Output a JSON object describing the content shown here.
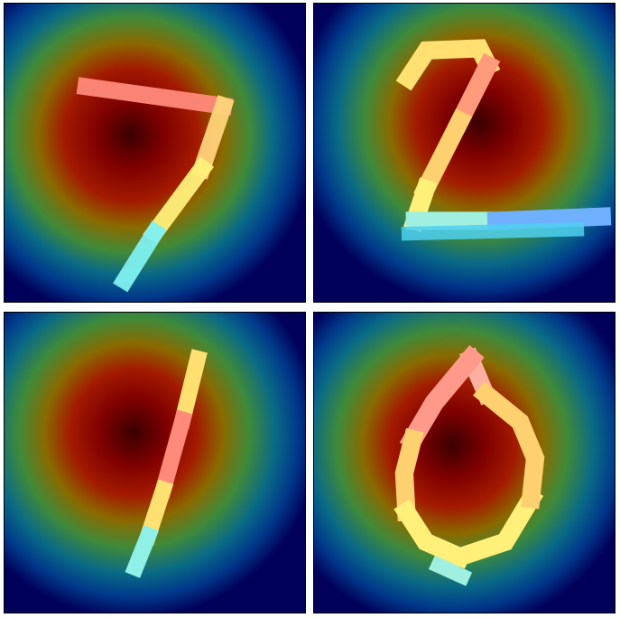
{
  "figure": {
    "panels": [
      {
        "digit_shape": "seven",
        "colormap": "jet",
        "overlay": "digit-stroke"
      },
      {
        "digit_shape": "two",
        "colormap": "jet",
        "overlay": "digit-stroke"
      },
      {
        "digit_shape": "one",
        "colormap": "jet",
        "overlay": "digit-stroke"
      },
      {
        "digit_shape": "zero",
        "colormap": "jet",
        "overlay": "digit-stroke"
      }
    ]
  }
}
